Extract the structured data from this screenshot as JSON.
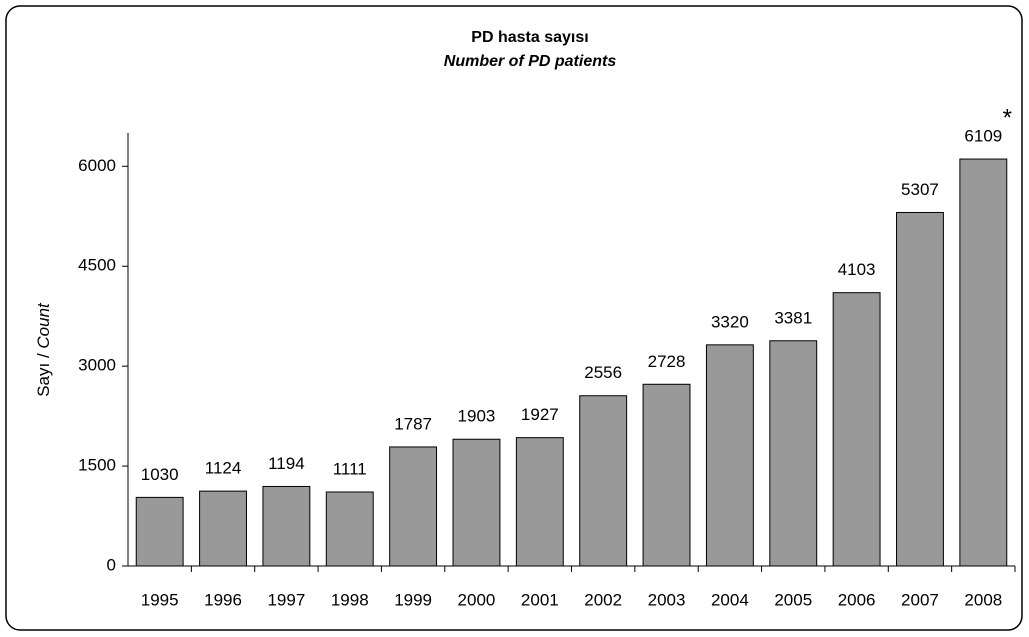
{
  "chart_data": {
    "type": "bar",
    "title": "PD hasta sayısı",
    "subtitle": "Number of PD patients",
    "y_label": [
      "Sayı /",
      "Count"
    ],
    "categories": [
      "1995",
      "1996",
      "1997",
      "1998",
      "1999",
      "2000",
      "2001",
      "2002",
      "2003",
      "2004",
      "2005",
      "2006",
      "2007",
      "2008"
    ],
    "values": [
      1030,
      1124,
      1194,
      1111,
      1787,
      1903,
      1927,
      2556,
      2728,
      3320,
      3381,
      4103,
      5307,
      6109
    ],
    "color": "#999999",
    "ylim": [
      0,
      6500
    ],
    "yticks": [
      0,
      1500,
      3000,
      4500,
      6000
    ],
    "grid": false,
    "annotation": "*"
  }
}
